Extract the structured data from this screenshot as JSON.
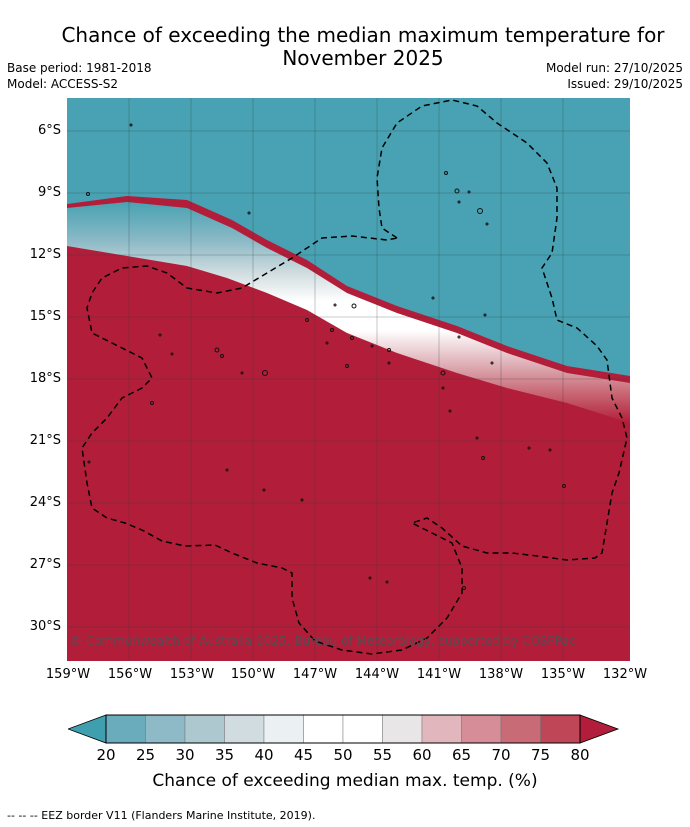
{
  "title_line1": "Chance of exceeding the median maximum temperature for",
  "title_line2": "November 2025",
  "base_period": "Base period: 1981-2018",
  "model": "Model: ACCESS-S2",
  "model_run": "Model run: 27/10/2025",
  "issued": "Issued: 29/10/2025",
  "copyright": "© Commonwealth of Australia 2025, Bureau of Meteorology, supported by COSPPac",
  "lat_labels": [
    "6°S",
    "9°S",
    "12°S",
    "15°S",
    "18°S",
    "21°S",
    "24°S",
    "27°S",
    "30°S"
  ],
  "lon_labels": [
    "159°W",
    "156°W",
    "153°W",
    "150°W",
    "147°W",
    "144°W",
    "141°W",
    "138°W",
    "135°W",
    "132°W"
  ],
  "colorbar": {
    "ticks": [
      "20",
      "25",
      "30",
      "35",
      "40",
      "45",
      "50",
      "55",
      "60",
      "65",
      "70",
      "75",
      "80"
    ],
    "colors": [
      "#3f9fae",
      "#6aacbb",
      "#8dbac6",
      "#adc9cf",
      "#d0dcdf",
      "#ebf0f2",
      "#ffffff",
      "#ffffff",
      "#e8e6e6",
      "#e1b7bd",
      "#d68d97",
      "#c96a77",
      "#be4656",
      "#b11d3a"
    ],
    "label": "Chance of exceeding median max. temp. (%)"
  },
  "footnote": "--  --  -- EEZ border V11 (Flanders Marine Institute, 2019).",
  "map_colors": {
    "ocean_high": "#48a2b3",
    "ocean_low": "#b21e39",
    "white_band": "#ffffff"
  }
}
